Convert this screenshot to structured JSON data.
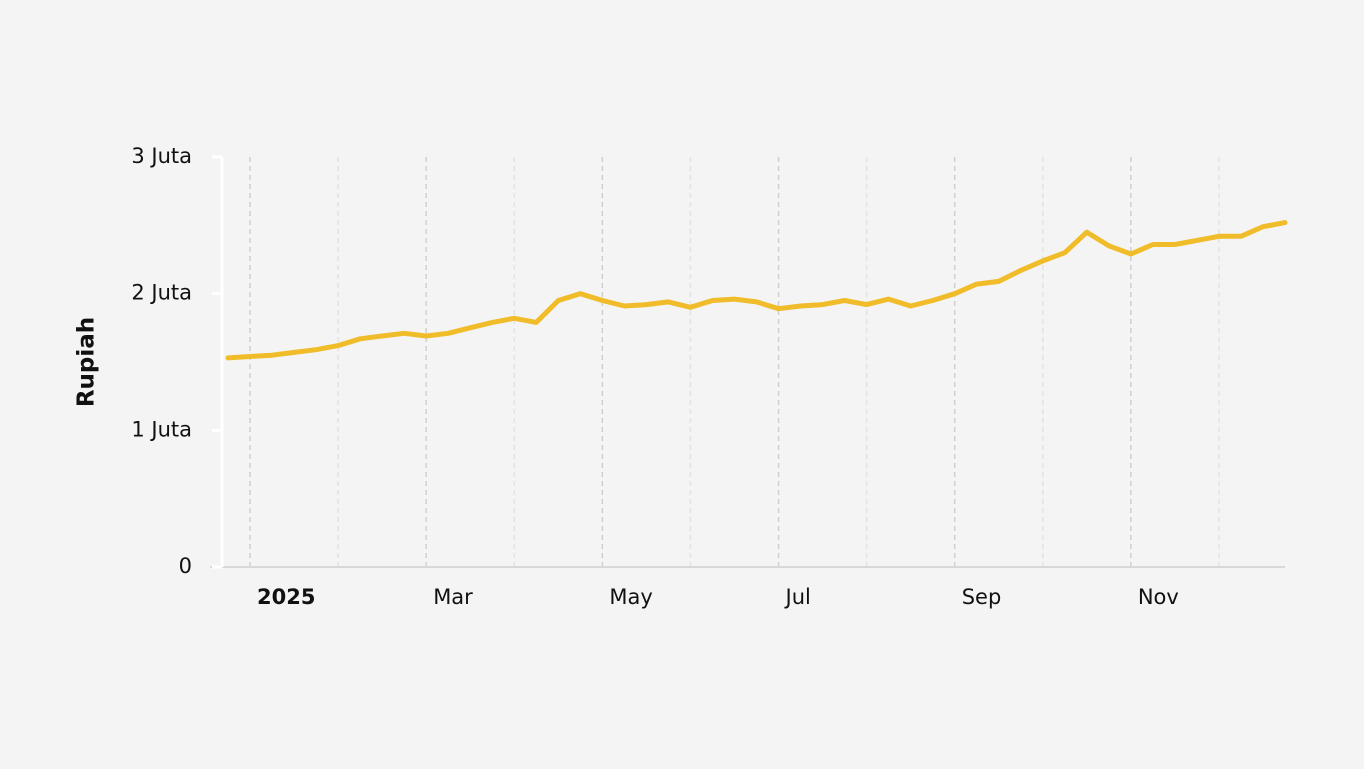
{
  "chart_data": {
    "type": "line",
    "y_label": "Rupiah",
    "categories": [
      null,
      "2025",
      null,
      null,
      null,
      null,
      null,
      null,
      null,
      "Mar",
      null,
      null,
      null,
      null,
      null,
      null,
      null,
      "May",
      null,
      null,
      null,
      null,
      null,
      null,
      null,
      "Jul",
      null,
      null,
      null,
      null,
      null,
      null,
      null,
      "Sep",
      null,
      null,
      null,
      null,
      null,
      null,
      null,
      "Nov",
      null,
      null,
      null,
      null,
      null,
      null,
      null
    ],
    "series": [
      {
        "color": "#f0bc2a",
        "values": [
          1530000,
          1540000,
          1550000,
          1570000,
          1590000,
          1620000,
          1670000,
          1690000,
          1710000,
          1690000,
          1710000,
          1750000,
          1790000,
          1820000,
          1790000,
          1950000,
          2000000,
          1950000,
          1910000,
          1920000,
          1940000,
          1900000,
          1950000,
          1960000,
          1940000,
          1890000,
          1910000,
          1920000,
          1950000,
          1920000,
          1960000,
          1910000,
          1950000,
          2000000,
          2070000,
          2090000,
          2170000,
          2240000,
          2300000,
          2450000,
          2350000,
          2290000,
          2360000,
          2360000,
          2390000,
          2420000,
          2420000,
          2490000,
          2520000
        ]
      }
    ],
    "ylim": [
      0,
      3000000
    ],
    "yticks": [
      0,
      {
        "value": 1000000,
        "label": "1 Juta"
      },
      {
        "value": 2000000,
        "label": "2 Juta"
      },
      {
        "value": 3000000,
        "label": "3 Juta"
      }
    ],
    "grid": true
  }
}
